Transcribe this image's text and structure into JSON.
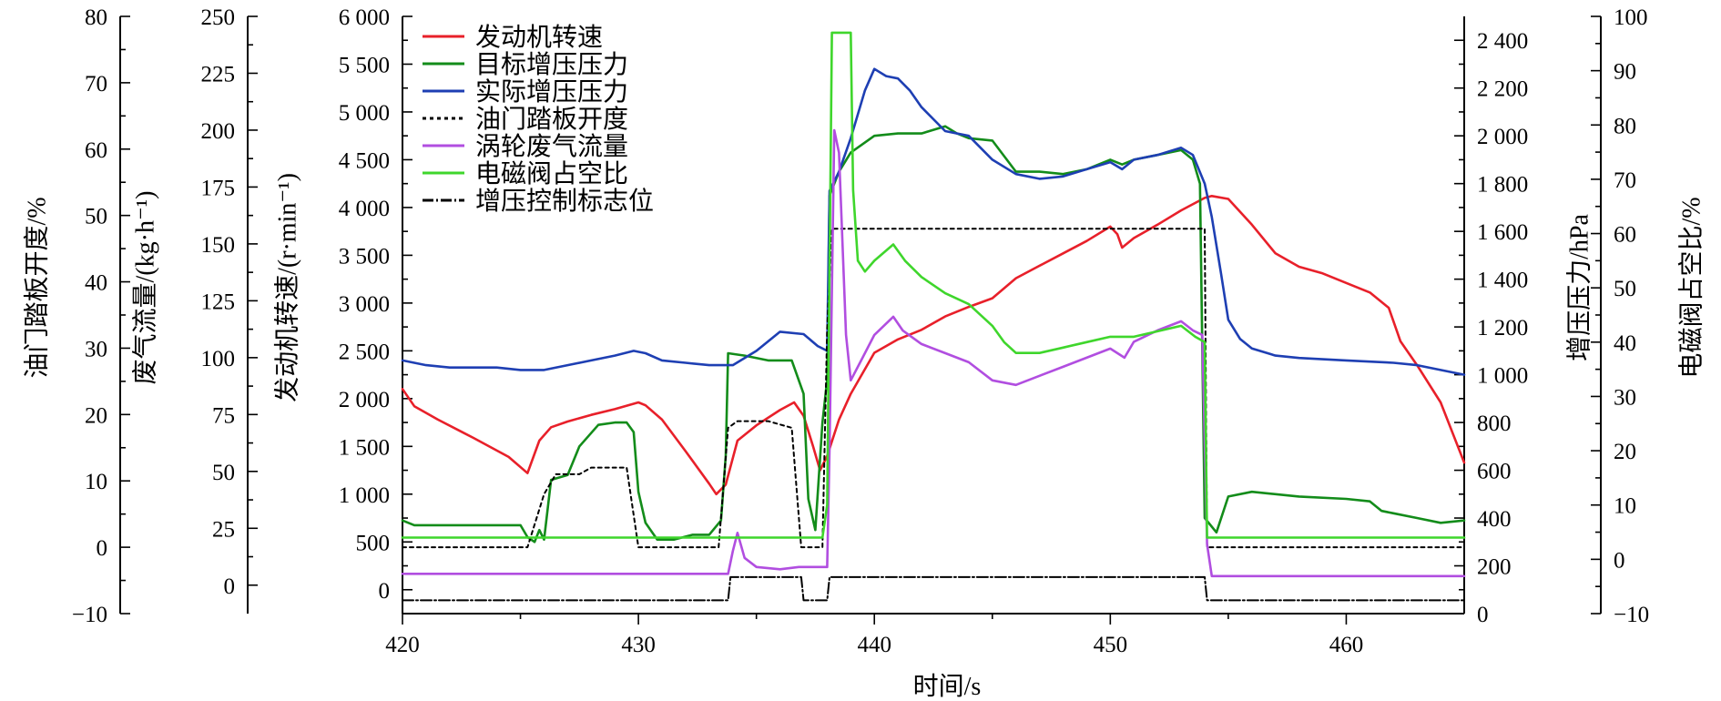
{
  "chart_data": {
    "type": "line",
    "xlabel": "时间/s",
    "xlim": [
      420,
      465
    ],
    "x_ticks": [
      "420",
      "430",
      "440",
      "450",
      "460"
    ],
    "axes": {
      "throttle": {
        "label": "油门踏板开度/%",
        "lim": [
          -10,
          80
        ],
        "ticks": [
          "−10",
          "0",
          "10",
          "20",
          "30",
          "40",
          "50",
          "60",
          "70",
          "80"
        ]
      },
      "exhaust_flow": {
        "label": "废气流量/(kg·h⁻¹)",
        "lim": [
          -12.5,
          250
        ],
        "ticks": [
          "0",
          "25",
          "50",
          "75",
          "100",
          "125",
          "150",
          "175",
          "200",
          "225",
          "250"
        ]
      },
      "engine_speed": {
        "label": "发动机转速/(r·min⁻¹)",
        "lim": [
          -250,
          6000
        ],
        "ticks": [
          "0",
          "500",
          "1 000",
          "1 500",
          "2 000",
          "2 500",
          "3 000",
          "3 500",
          "4 000",
          "4 500",
          "5 000",
          "5 500",
          "6 000"
        ]
      },
      "boost_pressure": {
        "label": "增压压力/hPa",
        "lim": [
          0,
          2500
        ],
        "ticks": [
          "0",
          "200",
          "400",
          "600",
          "800",
          "1 000",
          "1 200",
          "1 400",
          "1 600",
          "1 800",
          "2 000",
          "2 200",
          "2 400"
        ]
      },
      "duty_cycle": {
        "label": "电磁阀占空比/%",
        "lim": [
          -10,
          100
        ],
        "ticks": [
          "−10",
          "0",
          "10",
          "20",
          "30",
          "40",
          "50",
          "60",
          "70",
          "80",
          "90",
          "100"
        ]
      }
    },
    "legend_position": "top-left",
    "series": [
      {
        "name": "发动机转速",
        "axis": "engine_speed",
        "color": "#e8202a",
        "dash": "",
        "points": [
          [
            420,
            2100
          ],
          [
            420.5,
            1920
          ],
          [
            421.5,
            1780
          ],
          [
            423,
            1590
          ],
          [
            424.5,
            1390
          ],
          [
            425.3,
            1220
          ],
          [
            425.8,
            1560
          ],
          [
            426.3,
            1700
          ],
          [
            427,
            1760
          ],
          [
            428,
            1830
          ],
          [
            429,
            1890
          ],
          [
            430,
            1960
          ],
          [
            430.3,
            1930
          ],
          [
            431,
            1780
          ],
          [
            432,
            1450
          ],
          [
            433,
            1110
          ],
          [
            433.3,
            1000
          ],
          [
            433.7,
            1100
          ],
          [
            434.2,
            1560
          ],
          [
            435,
            1720
          ],
          [
            436,
            1880
          ],
          [
            436.6,
            1960
          ],
          [
            437,
            1820
          ],
          [
            437.4,
            1500
          ],
          [
            437.7,
            1250
          ],
          [
            438,
            1400
          ],
          [
            438.5,
            1780
          ],
          [
            439,
            2050
          ],
          [
            440,
            2480
          ],
          [
            441,
            2620
          ],
          [
            442,
            2720
          ],
          [
            443,
            2860
          ],
          [
            444,
            2960
          ],
          [
            445,
            3050
          ],
          [
            446,
            3260
          ],
          [
            447,
            3390
          ],
          [
            448,
            3520
          ],
          [
            449,
            3650
          ],
          [
            450,
            3800
          ],
          [
            450.3,
            3720
          ],
          [
            450.5,
            3580
          ],
          [
            451,
            3680
          ],
          [
            452,
            3820
          ],
          [
            453,
            3970
          ],
          [
            454,
            4100
          ],
          [
            454.3,
            4120
          ],
          [
            455,
            4090
          ],
          [
            456,
            3820
          ],
          [
            457,
            3520
          ],
          [
            458,
            3380
          ],
          [
            459,
            3310
          ],
          [
            460,
            3210
          ],
          [
            461,
            3110
          ],
          [
            461.8,
            2950
          ],
          [
            462.3,
            2600
          ],
          [
            463,
            2350
          ],
          [
            464,
            1960
          ],
          [
            465,
            1330
          ]
        ]
      },
      {
        "name": "目标增压压力",
        "axis": "boost_pressure",
        "color": "#138c1a",
        "dash": "",
        "points": [
          [
            420,
            390
          ],
          [
            420.5,
            370
          ],
          [
            425,
            370
          ],
          [
            425.3,
            320
          ],
          [
            425.6,
            300
          ],
          [
            425.8,
            350
          ],
          [
            426,
            310
          ],
          [
            426.3,
            560
          ],
          [
            427,
            580
          ],
          [
            427.5,
            700
          ],
          [
            428.3,
            790
          ],
          [
            429,
            800
          ],
          [
            429.5,
            800
          ],
          [
            429.8,
            760
          ],
          [
            430,
            510
          ],
          [
            430.3,
            380
          ],
          [
            430.8,
            310
          ],
          [
            431.5,
            310
          ],
          [
            432.3,
            330
          ],
          [
            433,
            330
          ],
          [
            433.5,
            390
          ],
          [
            433.7,
            660
          ],
          [
            433.8,
            1090
          ],
          [
            434.5,
            1080
          ],
          [
            435.5,
            1060
          ],
          [
            436.5,
            1060
          ],
          [
            437,
            920
          ],
          [
            437.2,
            480
          ],
          [
            437.5,
            350
          ],
          [
            437.8,
            800
          ],
          [
            438,
            980
          ],
          [
            438.1,
            1750
          ],
          [
            438.5,
            1850
          ],
          [
            439,
            1930
          ],
          [
            440,
            2000
          ],
          [
            441,
            2010
          ],
          [
            442,
            2010
          ],
          [
            443,
            2040
          ],
          [
            443.5,
            2010
          ],
          [
            444,
            1990
          ],
          [
            445,
            1980
          ],
          [
            446,
            1850
          ],
          [
            447,
            1850
          ],
          [
            448,
            1840
          ],
          [
            449,
            1860
          ],
          [
            450,
            1900
          ],
          [
            450.5,
            1880
          ],
          [
            451,
            1900
          ],
          [
            452,
            1920
          ],
          [
            453,
            1940
          ],
          [
            453.5,
            1900
          ],
          [
            453.8,
            1800
          ],
          [
            454,
            400
          ],
          [
            454.5,
            340
          ],
          [
            455,
            490
          ],
          [
            456,
            510
          ],
          [
            458,
            490
          ],
          [
            460,
            480
          ],
          [
            461,
            470
          ],
          [
            461.5,
            430
          ],
          [
            462,
            420
          ],
          [
            463,
            400
          ],
          [
            464,
            380
          ],
          [
            465,
            390
          ]
        ]
      },
      {
        "name": "实际增压压力",
        "axis": "boost_pressure",
        "color": "#1e3fb3",
        "dash": "",
        "points": [
          [
            420,
            1060
          ],
          [
            421,
            1040
          ],
          [
            422,
            1030
          ],
          [
            424,
            1030
          ],
          [
            425,
            1020
          ],
          [
            426,
            1020
          ],
          [
            427,
            1040
          ],
          [
            428,
            1060
          ],
          [
            429,
            1080
          ],
          [
            429.8,
            1100
          ],
          [
            430.3,
            1090
          ],
          [
            431,
            1060
          ],
          [
            432,
            1050
          ],
          [
            433,
            1040
          ],
          [
            434,
            1040
          ],
          [
            435,
            1100
          ],
          [
            436,
            1180
          ],
          [
            437,
            1170
          ],
          [
            437.6,
            1120
          ],
          [
            438,
            1100
          ],
          [
            438.1,
            1770
          ],
          [
            438.5,
            1850
          ],
          [
            439,
            1990
          ],
          [
            439.6,
            2190
          ],
          [
            440,
            2280
          ],
          [
            440.5,
            2250
          ],
          [
            441,
            2240
          ],
          [
            441.5,
            2190
          ],
          [
            442,
            2120
          ],
          [
            443,
            2020
          ],
          [
            444,
            2000
          ],
          [
            445,
            1900
          ],
          [
            446,
            1840
          ],
          [
            447,
            1820
          ],
          [
            448,
            1830
          ],
          [
            449,
            1860
          ],
          [
            450,
            1890
          ],
          [
            450.5,
            1860
          ],
          [
            451,
            1900
          ],
          [
            452,
            1920
          ],
          [
            453,
            1950
          ],
          [
            453.5,
            1920
          ],
          [
            454,
            1800
          ],
          [
            454.3,
            1660
          ],
          [
            454.7,
            1420
          ],
          [
            455,
            1230
          ],
          [
            455.5,
            1150
          ],
          [
            456,
            1110
          ],
          [
            457,
            1080
          ],
          [
            458,
            1070
          ],
          [
            460,
            1060
          ],
          [
            462,
            1050
          ],
          [
            463,
            1040
          ],
          [
            464,
            1020
          ],
          [
            465,
            1000
          ]
        ]
      },
      {
        "name": "油门踏板开度",
        "axis": "throttle",
        "color": "#000000",
        "dash": "4 4",
        "points": [
          [
            420,
            0
          ],
          [
            425,
            0
          ],
          [
            425.3,
            0
          ],
          [
            426,
            8
          ],
          [
            426.5,
            11
          ],
          [
            427.5,
            11
          ],
          [
            428,
            12
          ],
          [
            429.5,
            12
          ],
          [
            430,
            0
          ],
          [
            433,
            0
          ],
          [
            433.4,
            0
          ],
          [
            433.8,
            18
          ],
          [
            434.2,
            19
          ],
          [
            435.5,
            19
          ],
          [
            436.5,
            18
          ],
          [
            436.9,
            0
          ],
          [
            437.8,
            0
          ],
          [
            438,
            33
          ],
          [
            438.2,
            48
          ],
          [
            445,
            48
          ],
          [
            450,
            48
          ],
          [
            454,
            48
          ],
          [
            454.1,
            0
          ],
          [
            465,
            0
          ]
        ]
      },
      {
        "name": "涡轮废气流量",
        "axis": "exhaust_flow",
        "color": "#b14ee0",
        "dash": "",
        "points": [
          [
            420,
            5
          ],
          [
            433.8,
            5
          ],
          [
            434,
            15
          ],
          [
            434.2,
            23
          ],
          [
            434.5,
            12
          ],
          [
            435,
            8
          ],
          [
            436,
            7
          ],
          [
            436.8,
            8
          ],
          [
            437.6,
            8
          ],
          [
            438,
            8
          ],
          [
            438.1,
            60
          ],
          [
            438.3,
            200
          ],
          [
            438.5,
            190
          ],
          [
            438.8,
            110
          ],
          [
            439,
            90
          ],
          [
            439.5,
            100
          ],
          [
            440,
            110
          ],
          [
            440.8,
            118
          ],
          [
            441.2,
            112
          ],
          [
            442,
            106
          ],
          [
            443,
            102
          ],
          [
            444,
            98
          ],
          [
            445,
            90
          ],
          [
            446,
            88
          ],
          [
            447,
            92
          ],
          [
            448,
            96
          ],
          [
            449,
            100
          ],
          [
            450,
            104
          ],
          [
            450.6,
            100
          ],
          [
            451,
            107
          ],
          [
            452,
            112
          ],
          [
            453,
            116
          ],
          [
            453.5,
            112
          ],
          [
            453.9,
            110
          ],
          [
            454.1,
            18
          ],
          [
            454.3,
            4
          ],
          [
            465,
            4
          ]
        ]
      },
      {
        "name": "电磁阀占空比",
        "axis": "duty_cycle",
        "color": "#3fd62c",
        "dash": "",
        "points": [
          [
            420,
            4
          ],
          [
            437.8,
            4
          ],
          [
            438,
            10
          ],
          [
            438.2,
            97
          ],
          [
            439,
            97
          ],
          [
            439.1,
            68
          ],
          [
            439.3,
            55
          ],
          [
            439.6,
            53
          ],
          [
            440,
            55
          ],
          [
            440.8,
            58
          ],
          [
            441.3,
            55
          ],
          [
            442,
            52
          ],
          [
            443,
            49
          ],
          [
            444,
            47
          ],
          [
            445,
            43
          ],
          [
            445.5,
            40
          ],
          [
            446,
            38
          ],
          [
            447,
            38
          ],
          [
            448,
            39
          ],
          [
            449,
            40
          ],
          [
            450,
            41
          ],
          [
            451,
            41
          ],
          [
            452,
            42
          ],
          [
            453,
            43
          ],
          [
            453.6,
            41
          ],
          [
            454,
            40
          ],
          [
            454.1,
            4
          ],
          [
            465,
            4
          ]
        ]
      },
      {
        "name": "增压控制标志位",
        "axis": "throttle",
        "color": "#000000",
        "dash": "12 3 2 3",
        "points": [
          [
            420,
            -8
          ],
          [
            433.8,
            -8
          ],
          [
            433.9,
            -4.5
          ],
          [
            436.9,
            -4.5
          ],
          [
            437,
            -8
          ],
          [
            438,
            -8
          ],
          [
            438.1,
            -4.5
          ],
          [
            454,
            -4.5
          ],
          [
            454.1,
            -8
          ],
          [
            465,
            -8
          ]
        ]
      }
    ]
  }
}
